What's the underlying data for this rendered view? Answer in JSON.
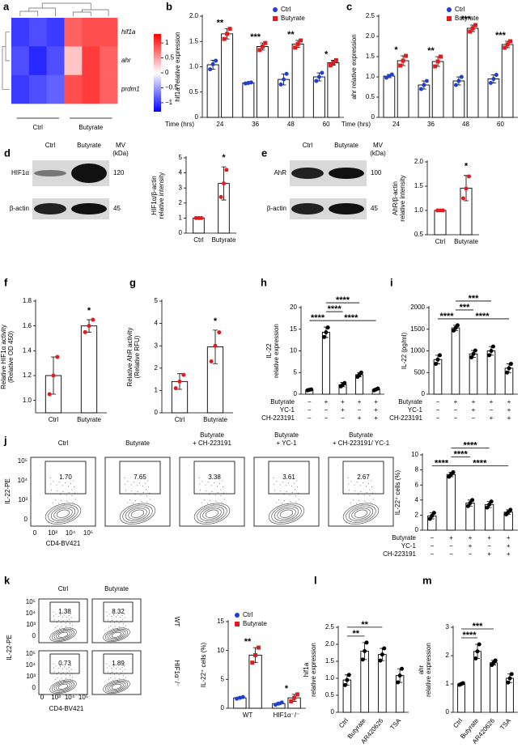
{
  "chart_data": [
    {
      "type": "heatmap",
      "panel": "a",
      "rows": [
        "hif1a",
        "ahr",
        "prdm1"
      ],
      "groups": [
        "Ctrl",
        "Butyrate"
      ],
      "values": [
        [
          -1,
          -0.9,
          -1,
          0.8,
          0.9,
          0.9
        ],
        [
          -0.9,
          -1.1,
          -0.9,
          0.3,
          1,
          0.8
        ],
        [
          -1,
          -0.9,
          -0.8,
          0.9,
          1,
          0.8
        ]
      ],
      "clim": [
        -1.3,
        1.3
      ],
      "colors": [
        "#0000ff",
        "#ffffff",
        "#ff0000"
      ],
      "cticks": [
        1,
        0.5,
        0,
        {
          "value": -0.5,
          "label": "−0.5"
        },
        {
          "value": -1,
          "label": "−1"
        }
      ]
    },
    {
      "type": "bar",
      "panel": "b",
      "ylabel": [
        "hif1a relative expression"
      ],
      "xlabel": "Time (hrs)",
      "categories": [
        "24",
        "36",
        "48",
        "60"
      ],
      "series": [
        {
          "name": "Ctrl",
          "color": "#1f3fd0",
          "marker": "circle",
          "values": [
            1.04,
            0.68,
            0.75,
            0.8
          ],
          "errors": [
            0.09,
            0.01,
            0.11,
            0.08
          ],
          "points": [
            [
              0.95,
              1.05,
              1.12
            ],
            [
              0.67,
              0.68,
              0.69
            ],
            [
              0.65,
              0.75,
              0.86
            ],
            [
              0.72,
              0.8,
              0.88
            ]
          ]
        },
        {
          "name": "Butyrate",
          "color": "#e41a1c",
          "marker": "square",
          "values": [
            1.65,
            1.4,
            1.45,
            1.08
          ],
          "errors": [
            0.1,
            0.07,
            0.07,
            0.05
          ],
          "points": [
            [
              1.55,
              1.65,
              1.75
            ],
            [
              1.33,
              1.4,
              1.47
            ],
            [
              1.38,
              1.45,
              1.52
            ],
            [
              1.03,
              1.08,
              1.13
            ]
          ]
        }
      ],
      "significance": [
        "**",
        "***",
        "**",
        "*"
      ],
      "ylim": [
        0,
        2
      ],
      "yticks": [
        0,
        0.5,
        {
          "value": 1,
          "label": "1.0"
        },
        1.5,
        {
          "value": 2,
          "label": "2.0"
        }
      ],
      "legend": "top-right"
    },
    {
      "type": "bar",
      "panel": "c",
      "ylabel": [
        "ahr relative expression"
      ],
      "xlabel": "Time (hrs)",
      "categories": [
        "24",
        "36",
        "48",
        "60"
      ],
      "series": [
        {
          "name": "Ctrl",
          "color": "#1f3fd0",
          "marker": "circle",
          "values": [
            1.02,
            0.8,
            0.9,
            0.95
          ],
          "errors": [
            0.04,
            0.1,
            0.1,
            0.1
          ],
          "points": [
            [
              0.98,
              1.02,
              1.06
            ],
            [
              0.7,
              0.8,
              0.9
            ],
            [
              0.8,
              0.9,
              1.0
            ],
            [
              0.85,
              0.95,
              1.05
            ]
          ]
        },
        {
          "name": "Butyrate",
          "color": "#e41a1c",
          "marker": "square",
          "values": [
            1.4,
            1.38,
            2.2,
            1.8
          ],
          "errors": [
            0.12,
            0.12,
            0.08,
            0.08
          ],
          "points": [
            [
              1.28,
              1.4,
              1.52
            ],
            [
              1.26,
              1.38,
              1.5
            ],
            [
              2.12,
              2.2,
              2.28
            ],
            [
              1.72,
              1.8,
              1.88
            ]
          ]
        }
      ],
      "significance": [
        "*",
        "**",
        "***",
        "***"
      ],
      "ylim": [
        0,
        2.5
      ],
      "yticks": [
        0,
        0.5,
        {
          "value": 1,
          "label": "1.0"
        },
        1.5,
        {
          "value": 2,
          "label": "2.0"
        },
        2.5
      ],
      "legend": "top-right"
    },
    {
      "type": "bar",
      "ylabel": [
        "HIF1α/β-actin",
        "relative intensity"
      ],
      "categories": [
        "Ctrl",
        "Butyrate"
      ],
      "series": [
        {
          "color": "#e41a1c",
          "marker": "circle",
          "values": [
            1,
            3.3
          ],
          "errors": [
            0,
            1.1
          ],
          "points": [
            [
              1,
              1,
              1
            ],
            [
              2.4,
              3.3,
              4.2
            ]
          ]
        }
      ],
      "significance": [
        "*"
      ],
      "ylim": [
        0,
        5
      ],
      "yticks": [
        0,
        1,
        2,
        3,
        4,
        5
      ]
    },
    {
      "type": "bar",
      "ylabel": [
        "AhR/β-actin",
        "relative intensity"
      ],
      "categories": [
        "Ctrl",
        "Butyrate"
      ],
      "series": [
        {
          "color": "#e41a1c",
          "marker": "circle",
          "values": [
            1,
            1.46
          ],
          "errors": [
            0,
            0.26
          ],
          "points": [
            [
              1,
              1,
              1
            ],
            [
              1.25,
              1.45,
              1.7
            ]
          ]
        }
      ],
      "significance": [
        "*"
      ],
      "ylim": [
        0.5,
        2
      ],
      "yticks": [
        0.5,
        {
          "value": 1,
          "label": "1.0"
        },
        1.5,
        {
          "value": 2,
          "label": "2.0"
        }
      ]
    },
    {
      "type": "bar",
      "panel": "f",
      "ylabel": [
        "Relative HIF1α activity",
        "(Relative OD 450)"
      ],
      "categories": [
        "Ctrl",
        "Butyrate"
      ],
      "series": [
        {
          "color": "#e41a1c",
          "marker": "circle",
          "values": [
            1.2,
            1.6
          ],
          "errors": [
            0.15,
            0.05
          ],
          "points": [
            [
              1.05,
              1.2,
              1.35
            ],
            [
              1.55,
              1.6,
              1.65
            ]
          ]
        }
      ],
      "significance": [
        "*"
      ],
      "ylim": [
        0.9,
        1.8
      ],
      "yticks": [
        {
          "value": 1,
          "label": "1.0"
        },
        1.2,
        1.4,
        1.6,
        1.8
      ]
    },
    {
      "type": "bar",
      "panel": "g",
      "ylabel": [
        "Relative AhR activity",
        "(Relative RFU)"
      ],
      "categories": [
        "Ctrl",
        "Butyrate"
      ],
      "series": [
        {
          "color": "#e41a1c",
          "marker": "circle",
          "values": [
            1.4,
            2.95
          ],
          "errors": [
            0.35,
            0.75
          ],
          "points": [
            [
              1.1,
              1.4,
              1.7
            ],
            [
              2.3,
              3.0,
              3.6
            ]
          ]
        }
      ],
      "significance": [
        "*"
      ],
      "ylim": [
        0,
        5
      ],
      "yticks": [
        0,
        1,
        2,
        3,
        4,
        5
      ]
    },
    {
      "type": "bar",
      "panel": "h",
      "ylabel": [
        "IL-22",
        "relative expression"
      ],
      "categories": [
        null,
        null,
        null,
        null,
        null
      ],
      "series": [
        {
          "color": "#000000",
          "marker": "circle",
          "values": [
            1,
            14.3,
            2.2,
            4.5,
            1.1
          ],
          "errors": [
            0.2,
            1.2,
            0.5,
            0.5,
            0.2
          ],
          "points": [
            [
              0.9,
              1,
              1.1
            ],
            [
              13.2,
              14.3,
              15.4
            ],
            [
              1.8,
              2.2,
              2.6
            ],
            [
              4,
              4.5,
              5
            ],
            [
              0.9,
              1.1,
              1.3
            ]
          ]
        }
      ],
      "treatments": [
        {
          "name": "Butyrate",
          "signs": [
            "−",
            "+",
            "+",
            "+",
            "+"
          ]
        },
        {
          "name": "YC-1",
          "signs": [
            "−",
            "−",
            "+",
            "−",
            "+"
          ]
        },
        {
          "name": "CH-223191",
          "signs": [
            "−",
            "−",
            "−",
            "+",
            "+"
          ]
        }
      ],
      "significance": [
        "****",
        "****",
        "****",
        "****"
      ],
      "ylim": [
        0,
        20
      ],
      "yticks": [
        0,
        5,
        10,
        15,
        20
      ]
    },
    {
      "type": "bar",
      "panel": "i",
      "ylabel": [
        "IL-22 (pg/ml)"
      ],
      "categories": [
        null,
        null,
        null,
        null,
        null
      ],
      "series": [
        {
          "color": "#000000",
          "marker": "circle",
          "values": [
            800,
            1530,
            930,
            1000,
            600
          ],
          "errors": [
            100,
            60,
            80,
            100,
            100
          ],
          "points": [
            [
              700,
              800,
              900
            ],
            [
              1470,
              1530,
              1590
            ],
            [
              850,
              930,
              1010
            ],
            [
              900,
              1000,
              1100
            ],
            [
              500,
              600,
              700
            ]
          ]
        }
      ],
      "treatments": [
        {
          "name": "Butyrate",
          "signs": [
            "−",
            "+",
            "+",
            "+",
            "+"
          ]
        },
        {
          "name": "YC-1",
          "signs": [
            "−",
            "−",
            "+",
            "−",
            "+"
          ]
        },
        {
          "name": "CH-223191",
          "signs": [
            "−",
            "−",
            "−",
            "+",
            "+"
          ]
        }
      ],
      "significance": [
        "****",
        "***",
        "***",
        "****"
      ],
      "ylim": [
        0,
        2000
      ],
      "yticks": [
        0,
        500,
        1000,
        1500,
        2000
      ]
    },
    {
      "type": "bar",
      "ylabel": [
        "IL-22⁺ cells (%)"
      ],
      "categories": [
        null,
        null,
        null,
        null,
        null
      ],
      "series": [
        {
          "color": "#000000",
          "marker": "circle",
          "values": [
            1.9,
            7.4,
            3.6,
            3.4,
            2.4
          ],
          "errors": [
            0.4,
            0.3,
            0.4,
            0.4,
            0.3
          ],
          "points": [
            [
              1.5,
              1.9,
              2.3
            ],
            [
              7.1,
              7.4,
              7.7
            ],
            [
              3.2,
              3.6,
              4
            ],
            [
              3,
              3.4,
              3.8
            ],
            [
              2.1,
              2.4,
              2.7
            ]
          ]
        }
      ],
      "treatments": [
        {
          "name": "Butyrate",
          "signs": [
            "−",
            "+",
            "+",
            "+",
            "+"
          ]
        },
        {
          "name": "YC-1",
          "signs": [
            "−",
            "−",
            "+",
            "−",
            "+"
          ]
        },
        {
          "name": "CH-223191",
          "signs": [
            "−",
            "−",
            "−",
            "+",
            "+"
          ]
        }
      ],
      "significance": [
        "****",
        "****",
        "****",
        "****"
      ],
      "ylim": [
        0,
        10
      ],
      "yticks": [
        0,
        2,
        4,
        6,
        8,
        10
      ]
    },
    {
      "type": "bar",
      "ylabel": [
        "IL-22⁺ cells (%)"
      ],
      "categories": [
        "WT",
        "HIF1α⁻/⁻"
      ],
      "series": [
        {
          "name": "Ctrl",
          "color": "#1f3fd0",
          "marker": "circle",
          "values": [
            1.8,
            0.8
          ],
          "errors": [
            0.15,
            0.2
          ],
          "points": [
            [
              1.65,
              1.8,
              1.95
            ],
            [
              0.6,
              0.8,
              1.0
            ]
          ]
        },
        {
          "name": "Butyrate",
          "color": "#e41a1c",
          "marker": "square",
          "values": [
            9.2,
            1.8
          ],
          "errors": [
            1.3,
            0.6
          ],
          "points": [
            [
              7.9,
              9.2,
              10.5
            ],
            [
              1.2,
              1.8,
              2.4
            ]
          ]
        }
      ],
      "significance": [
        "**",
        "*"
      ],
      "ylim": [
        0,
        15
      ],
      "yticks": [
        0,
        5,
        10,
        15
      ],
      "legend": "top-right"
    },
    {
      "type": "bar",
      "panel": "l",
      "ylabel": [
        "hif1a",
        "relative expression"
      ],
      "categories": [
        "Ctrl",
        "Butyrate",
        "AR420626",
        "TSA"
      ],
      "series": [
        {
          "color": "#000000",
          "marker": "circle",
          "values": [
            0.95,
            1.8,
            1.7,
            1.08
          ],
          "errors": [
            0.15,
            0.25,
            0.18,
            0.2
          ],
          "points": [
            [
              0.8,
              0.95,
              1.1
            ],
            [
              1.55,
              1.8,
              2.05
            ],
            [
              1.52,
              1.7,
              1.88
            ],
            [
              0.88,
              1.08,
              1.28
            ]
          ]
        }
      ],
      "significance": [
        "**",
        "**"
      ],
      "ylim": [
        0,
        2.5
      ],
      "yticks": [
        0,
        0.5,
        {
          "value": 1,
          "label": "1.0"
        },
        1.5,
        {
          "value": 2,
          "label": "2.0"
        },
        2.5
      ]
    },
    {
      "type": "bar",
      "panel": "m",
      "ylabel": [
        "ahr",
        "relative expression"
      ],
      "categories": [
        "Ctrl",
        "Butyrate",
        "AR420626",
        "TSA"
      ],
      "series": [
        {
          "color": "#000000",
          "marker": "circle",
          "values": [
            1.0,
            2.15,
            1.75,
            1.2
          ],
          "errors": [
            0.03,
            0.25,
            0.08,
            0.15
          ],
          "points": [
            [
              0.97,
              1.0,
              1.03
            ],
            [
              1.9,
              2.15,
              2.4
            ],
            [
              1.67,
              1.75,
              1.83
            ],
            [
              1.05,
              1.2,
              1.35
            ]
          ]
        }
      ],
      "significance": [
        "***",
        "****"
      ],
      "ylim": [
        0,
        3
      ],
      "yticks": [
        0,
        1,
        2,
        3
      ]
    }
  ],
  "blots": [
    {
      "panel": "d",
      "lanes": [
        "Ctrl",
        "Butyrate"
      ],
      "mw_header": [
        "MV",
        "(kDa)"
      ],
      "bands": [
        {
          "name": "HIF1α",
          "mw": "120"
        },
        {
          "name": "β-actin",
          "mw": "45"
        }
      ]
    },
    {
      "panel": "e",
      "lanes": [
        "Ctrl",
        "Butyrate"
      ],
      "mw_header": [
        "MV",
        "(kDa)"
      ],
      "bands": [
        {
          "name": "AhR",
          "mw": "100"
        },
        {
          "name": "β-actin",
          "mw": "45"
        }
      ]
    }
  ],
  "flow_j": {
    "panel": "j",
    "y_label": "IL-22-PE",
    "x_label": "CD4-BV421",
    "y_ticks": [
      "10⁵",
      "10⁴",
      "10³",
      "0"
    ],
    "x_ticks": [
      "0",
      "10³",
      "10⁴",
      "10⁵"
    ],
    "plots": [
      {
        "title": [
          "Ctrl"
        ],
        "gate": "1.70"
      },
      {
        "title": [
          "Butyrate"
        ],
        "gate": "7.65"
      },
      {
        "title": [
          "Butyrate",
          "+ CH-223191"
        ],
        "gate": "3.38"
      },
      {
        "title": [
          "Butyrate",
          "+ YC-1"
        ],
        "gate": "3.61"
      },
      {
        "title": [
          "Butyrate",
          "+ CH-223191/ YC-1"
        ],
        "gate": "2.67"
      }
    ]
  },
  "flow_k": {
    "panel": "k",
    "y_label": "IL-22-PE",
    "x_label": "CD4-BV421",
    "y_ticks": [
      "10⁵",
      "10⁴",
      "10³",
      "0"
    ],
    "x_ticks": [
      "0",
      "10³",
      "10⁴",
      "10⁵"
    ],
    "columns": [
      "Ctrl",
      "Butyrate"
    ],
    "rows": [
      "WT",
      "HIF1α⁻/⁻"
    ],
    "gates": [
      [
        "1.38",
        "8.32"
      ],
      [
        "0.73",
        "1.89"
      ]
    ]
  }
}
